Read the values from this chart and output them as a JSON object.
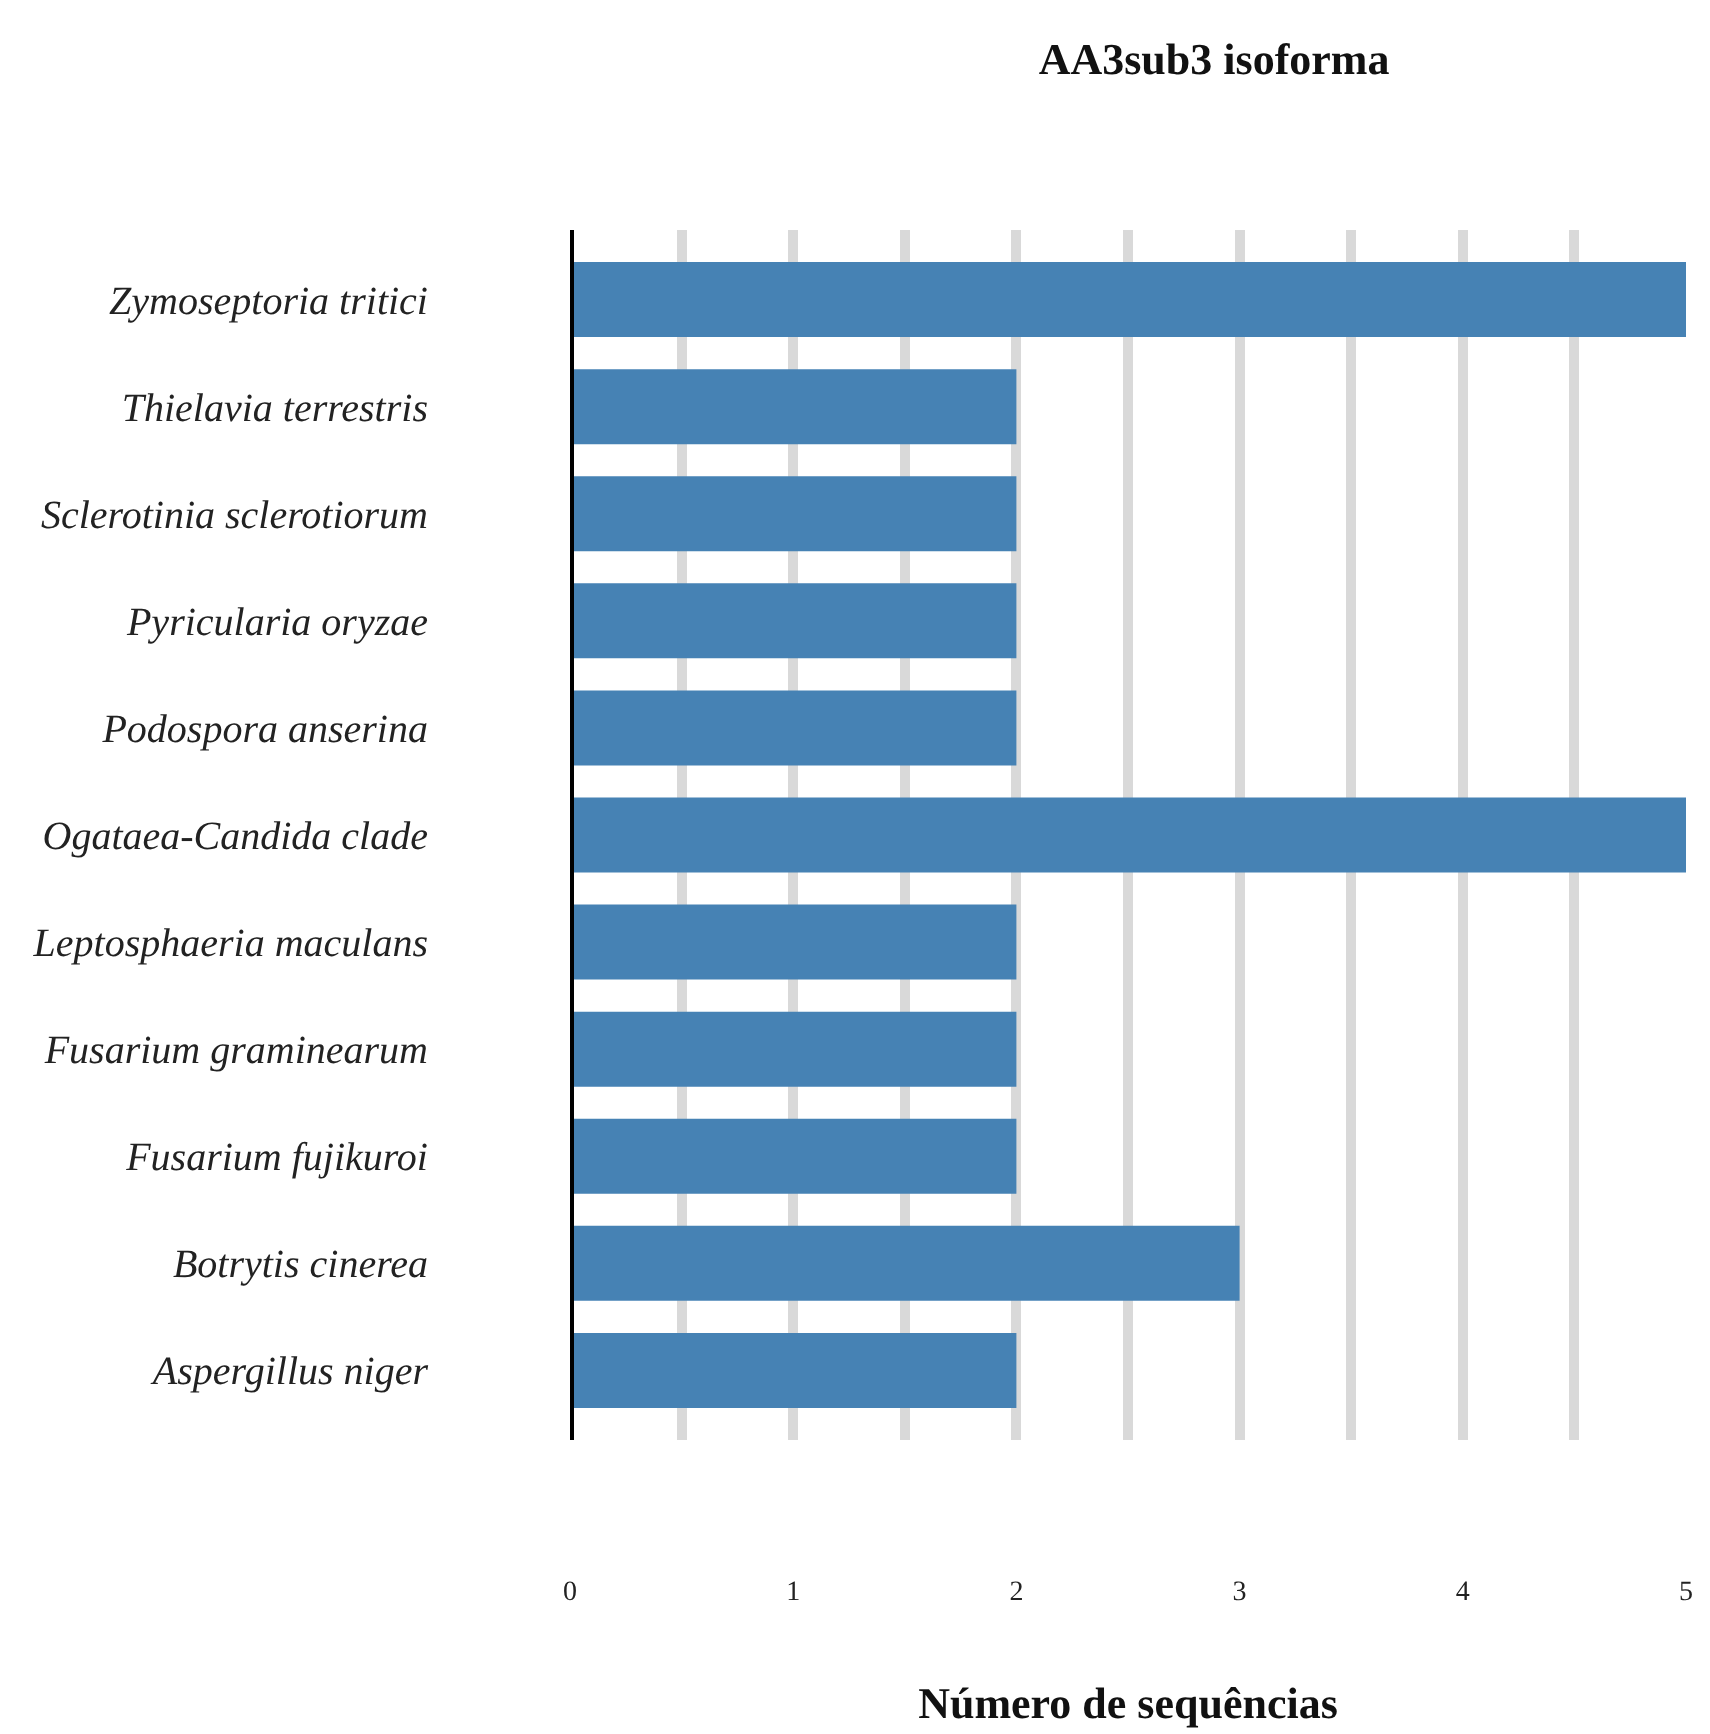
{
  "chart_data": {
    "type": "bar",
    "orientation": "horizontal",
    "title": "AA3sub3 isoforma",
    "xlabel": "Número de sequências",
    "categories": [
      "Zymoseptoria tritici",
      "Thielavia terrestris",
      "Sclerotinia sclerotiorum",
      "Pyricularia oryzae",
      "Podospora anserina",
      "Ogataea-Candida clade",
      "Leptosphaeria maculans",
      "Fusarium graminearum",
      "Fusarium fujikuroi",
      "Botrytis cinerea",
      "Aspergillus niger"
    ],
    "values": [
      5,
      2,
      2,
      2,
      2,
      5,
      2,
      2,
      2,
      3,
      2
    ],
    "color": "#4682b4",
    "xlim": [
      0,
      5
    ],
    "xticks": [
      0,
      {
        "value": 0.5,
        "label": null
      },
      1,
      {
        "value": 1.5,
        "label": null
      },
      2,
      {
        "value": 2.5,
        "label": null
      },
      3,
      {
        "value": 3.5,
        "label": null
      },
      4,
      {
        "value": 4.5,
        "label": null
      },
      5
    ],
    "grid": "x"
  }
}
